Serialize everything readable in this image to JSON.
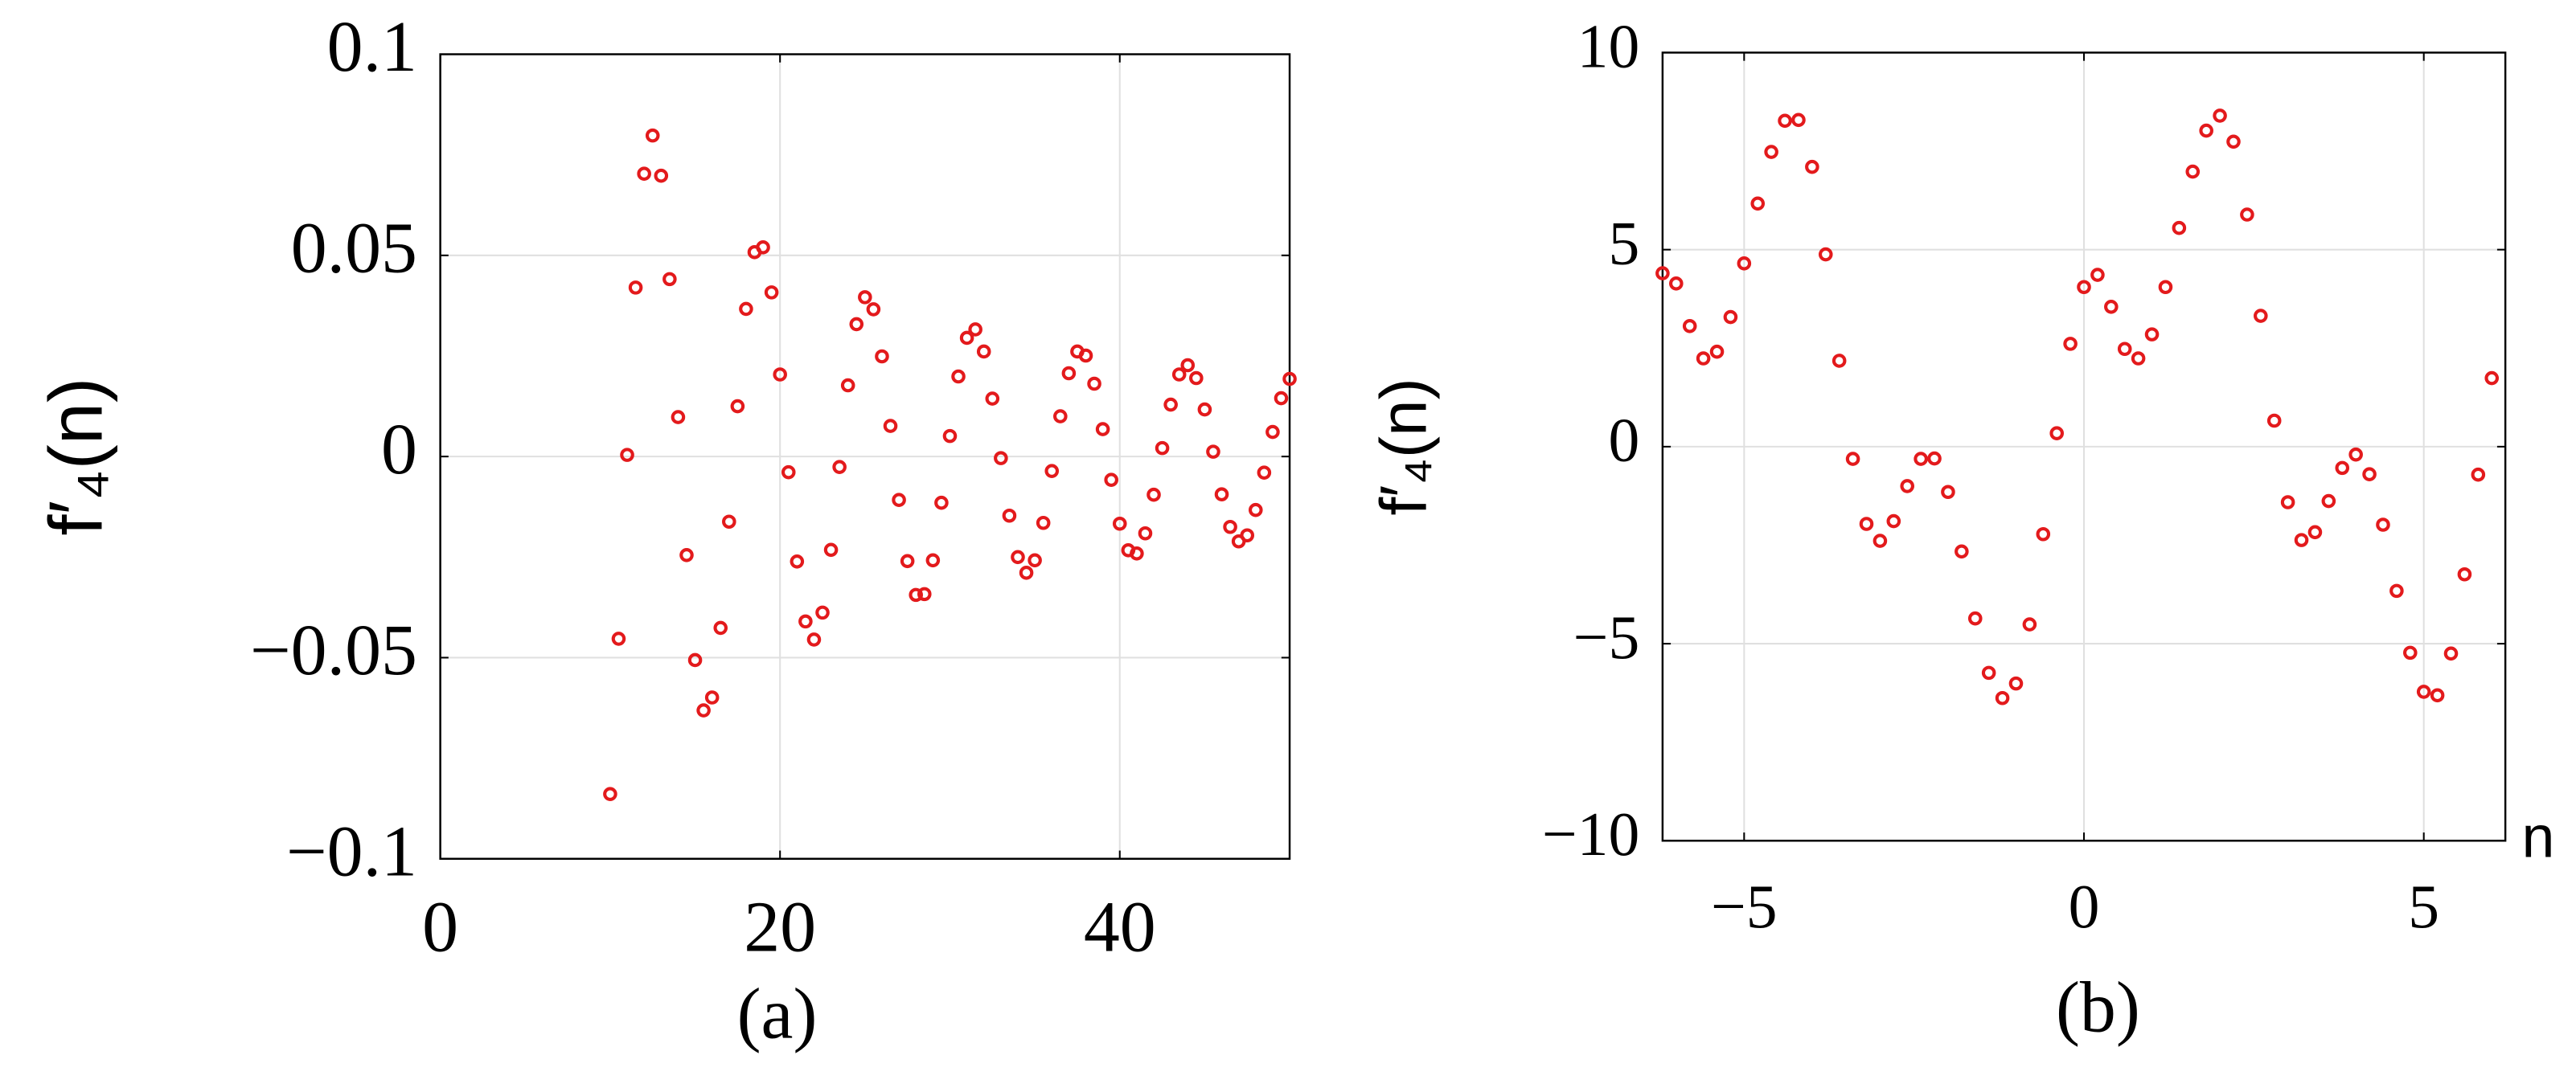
{
  "chart_data": [
    {
      "type": "scatter",
      "caption": "(a)",
      "ylabel": "f′₄(n)",
      "xlim": [
        0,
        50
      ],
      "xticks": [
        0,
        20,
        40
      ],
      "ylim": [
        -0.1,
        0.1
      ],
      "yticks": [
        {
          "value": -0.1,
          "label": "−0.1"
        },
        {
          "value": -0.05,
          "label": "−0.05"
        },
        0,
        0.05,
        0.1
      ],
      "grid": true,
      "color": "#e31a1c",
      "x": [
        10,
        10.5,
        11,
        11.5,
        12,
        12.5,
        13,
        13.5,
        14,
        14.5,
        15,
        15.5,
        16,
        16.5,
        17,
        17.5,
        18,
        18.5,
        19,
        19.5,
        20,
        20.5,
        21,
        21.5,
        22,
        22.5,
        23,
        23.5,
        24,
        24.5,
        25,
        25.5,
        26,
        26.5,
        27,
        27.5,
        28,
        28.5,
        29,
        29.5,
        30,
        30.5,
        31,
        31.5,
        32,
        32.5,
        33,
        33.5,
        34,
        34.5,
        35,
        35.5,
        36,
        36.5,
        37,
        37.5,
        38,
        38.5,
        39,
        39.5,
        40,
        40.5,
        41,
        41.5,
        42,
        42.5,
        43,
        43.5,
        44,
        44.5,
        45,
        45.5,
        46,
        46.5,
        47,
        47.5,
        48,
        48.5,
        49,
        49.5,
        50
      ],
      "values": [
        -0.0839,
        -0.0453,
        0.0004,
        0.042,
        0.0703,
        0.0798,
        0.0698,
        0.0441,
        0.0098,
        -0.0245,
        -0.0506,
        -0.0631,
        -0.0599,
        -0.0426,
        -0.0162,
        0.0125,
        0.0367,
        0.0508,
        0.052,
        0.0408,
        0.0204,
        -0.0039,
        -0.0261,
        -0.041,
        -0.0455,
        -0.0388,
        -0.0232,
        -0.0026,
        0.0177,
        0.0329,
        0.0396,
        0.0366,
        0.0249,
        0.0076,
        -0.0108,
        -0.026,
        -0.0344,
        -0.0342,
        -0.0258,
        -0.0115,
        0.0051,
        0.0199,
        0.0295,
        0.0316,
        0.0261,
        0.0144,
        -0.0004,
        -0.0147,
        -0.025,
        -0.0289,
        -0.0258,
        -0.0165,
        -0.0036,
        0.01,
        0.0207,
        0.0261,
        0.0251,
        0.0181,
        0.0068,
        -0.0058,
        -0.0167,
        -0.0233,
        -0.0241,
        -0.0191,
        -0.0095,
        0.0021,
        0.0129,
        0.0204,
        0.0227,
        0.0195,
        0.0117,
        0.0012,
        -0.0094,
        -0.0175,
        -0.0211,
        -0.0196,
        -0.0133,
        -0.004,
        0.0061,
        0.0145,
        0.0193
      ]
    },
    {
      "type": "scatter",
      "caption": "(b)",
      "ylabel": "f′₄(n)",
      "xlabel": "n",
      "xlim": [
        -6.2,
        6.2
      ],
      "xticks": [
        {
          "value": -5,
          "label": "−5"
        },
        0,
        5
      ],
      "ylim": [
        -10,
        10
      ],
      "yticks": [
        {
          "value": -10,
          "label": "−10"
        },
        {
          "value": -5,
          "label": "−5"
        },
        0,
        5,
        10
      ],
      "grid": true,
      "color": "#e31a1c",
      "x": [
        -6.2,
        -6.0,
        -5.8,
        -5.6,
        -5.4,
        -5.2,
        -5.0,
        -4.8,
        -4.6,
        -4.4,
        -4.2,
        -4.0,
        -3.8,
        -3.6,
        -3.4,
        -3.2,
        -3.0,
        -2.8,
        -2.6,
        -2.4,
        -2.2,
        -2.0,
        -1.8,
        -1.6,
        -1.4,
        -1.2,
        -1.0,
        -0.8,
        -0.6,
        -0.4,
        -0.2,
        0,
        0.2,
        0.4,
        0.6,
        0.8,
        1.0,
        1.2,
        1.4,
        1.6,
        1.8,
        2.0,
        2.2,
        2.4,
        2.6,
        2.8,
        3.0,
        3.2,
        3.4,
        3.6,
        3.8,
        4.0,
        4.2,
        4.4,
        4.6,
        4.8,
        5.0,
        5.2,
        5.4,
        5.6,
        5.8,
        6.0
      ],
      "values": [
        4.4,
        4.14,
        3.06,
        2.24,
        2.41,
        3.29,
        4.65,
        6.17,
        7.48,
        8.27,
        8.29,
        7.1,
        4.88,
        2.18,
        -0.31,
        -1.96,
        -2.39,
        -1.89,
        -1.0,
        -0.31,
        -0.3,
        -1.15,
        -2.66,
        -4.36,
        -5.74,
        -6.38,
        -6.01,
        -4.51,
        -2.22,
        0.34,
        2.61,
        4.05,
        4.36,
        3.55,
        2.48,
        2.24,
        2.85,
        4.05,
        5.55,
        6.98,
        8.02,
        8.4,
        7.74,
        5.89,
        3.32,
        0.66,
        -1.41,
        -2.37,
        -2.17,
        -1.38,
        -0.54,
        -0.2,
        -0.7,
        -1.98,
        -3.66,
        -5.23,
        -6.22,
        -6.31,
        -5.25,
        -3.24,
        -0.71,
        1.74
      ]
    }
  ]
}
